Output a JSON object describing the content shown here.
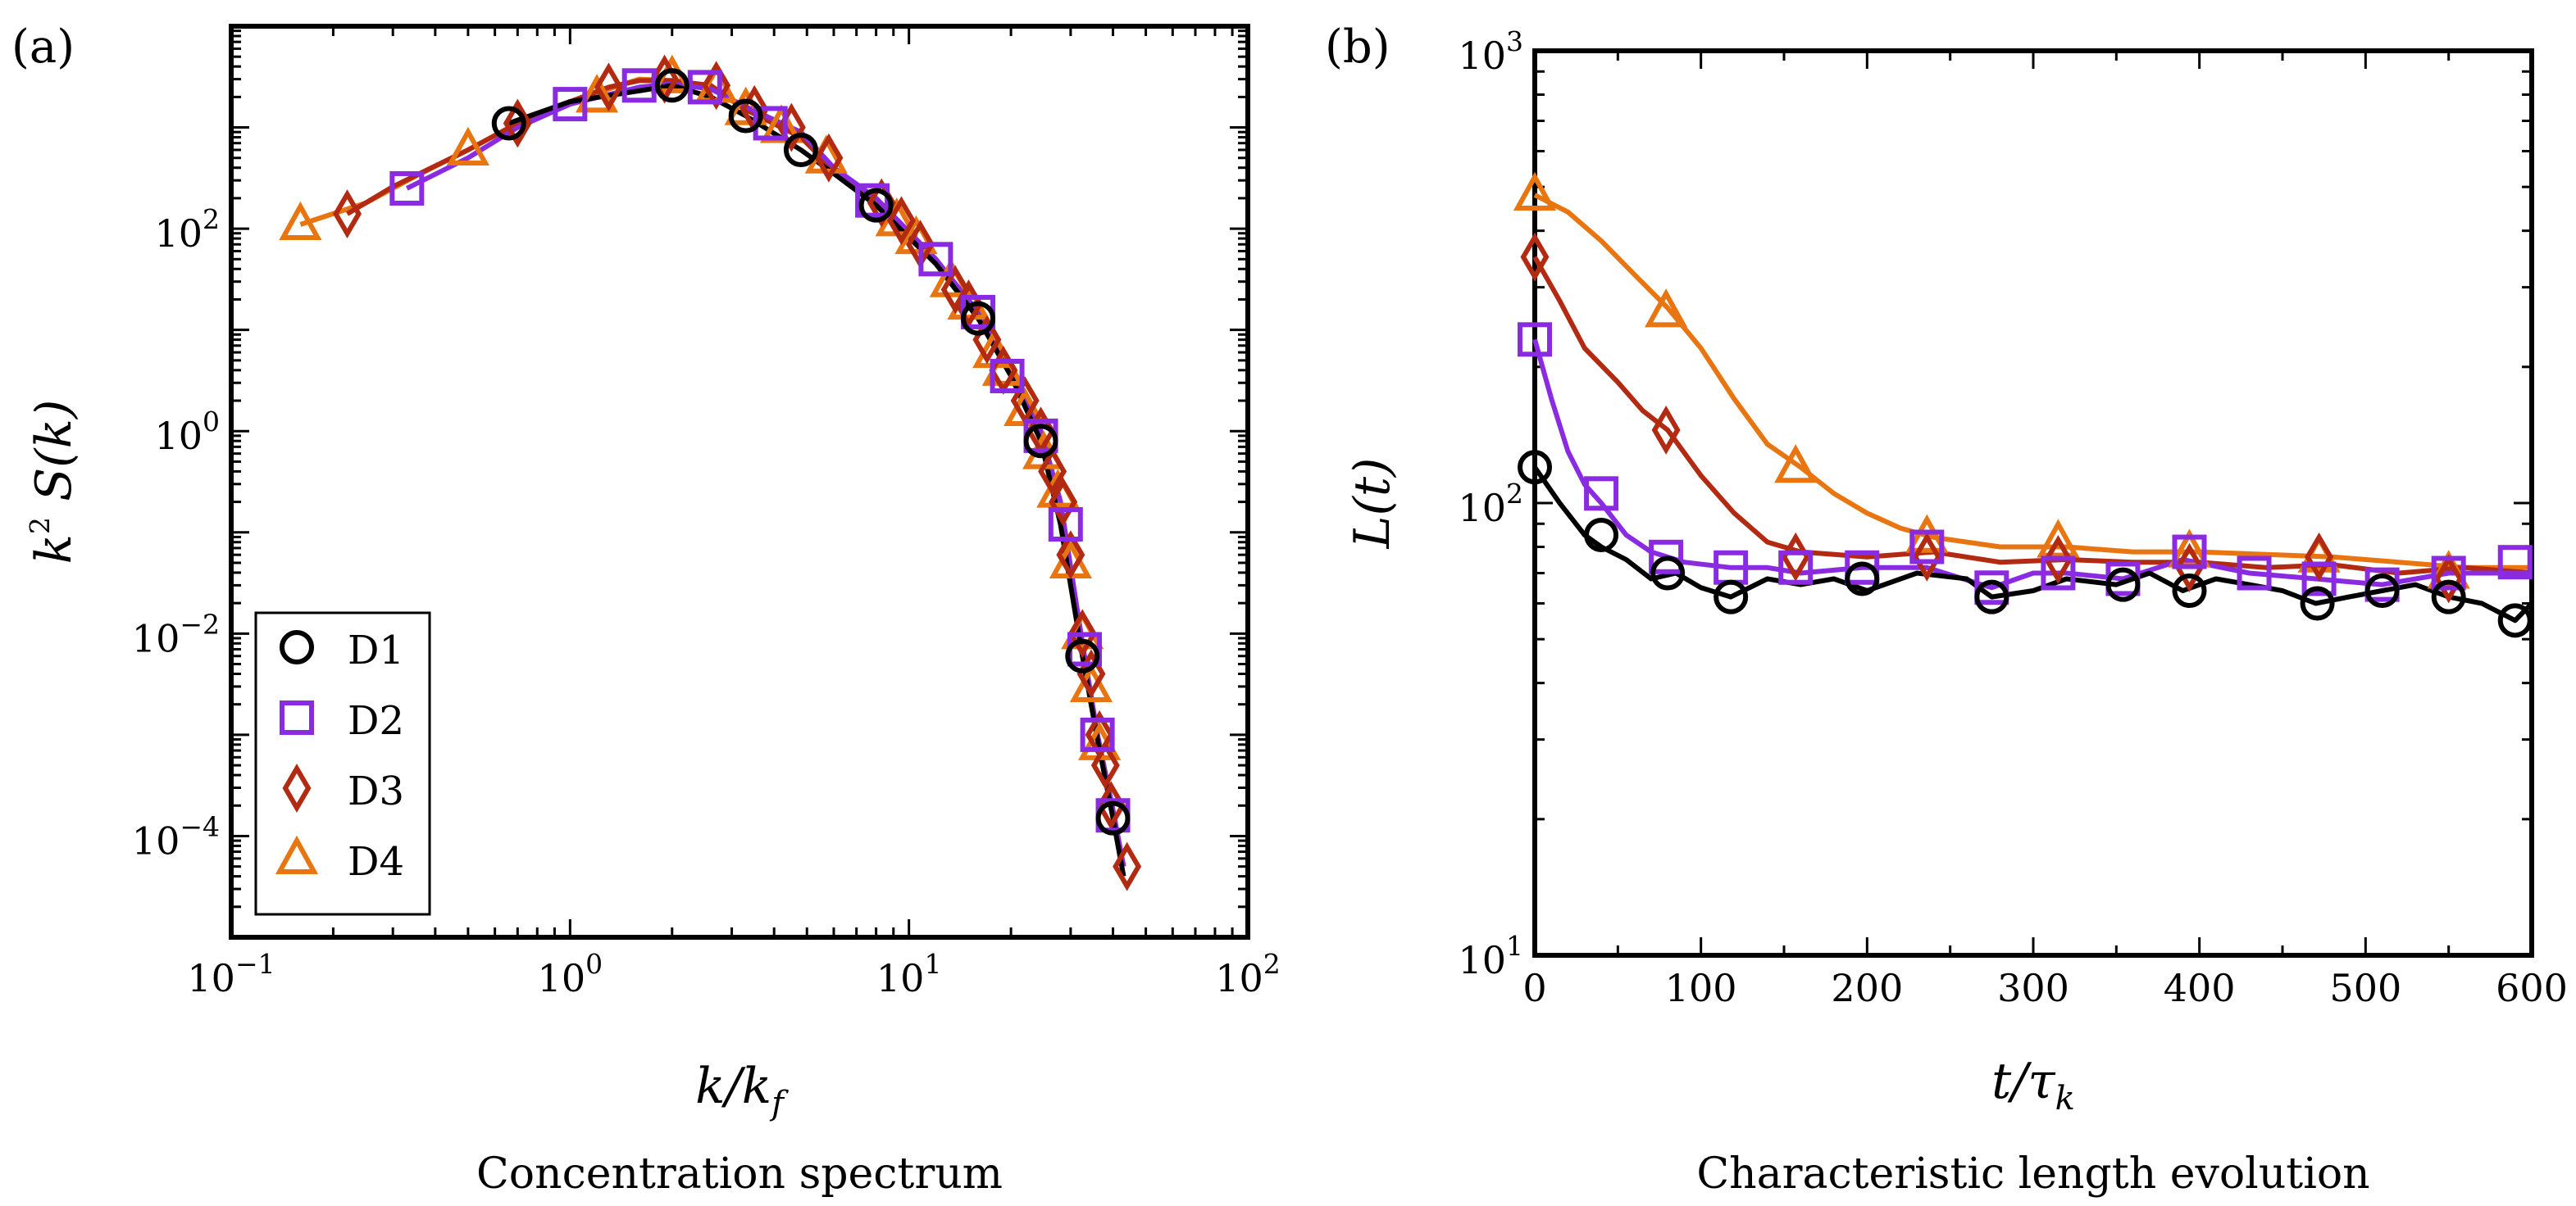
{
  "colors": {
    "D1": "#000000",
    "D2": "#8a2be2",
    "D3": "#b22a12",
    "D4": "#e8750f"
  },
  "markers": {
    "D1": "circle",
    "D2": "square",
    "D3": "diamond",
    "D4": "triangle"
  },
  "chart_data": [
    {
      "type": "line",
      "panel_label": "(a)",
      "caption": "Concentration spectrum",
      "title": "",
      "xlabel": "k/k_f",
      "ylabel": "k^2 S(k)",
      "xscale": "log",
      "yscale": "log",
      "xlim": [
        0.1,
        100
      ],
      "ylim": [
        1e-05,
        10000
      ],
      "x_ticks": [
        {
          "base": "10",
          "exp": "−1"
        },
        {
          "base": "10",
          "exp": "0"
        },
        {
          "base": "10",
          "exp": "1"
        },
        {
          "base": "10",
          "exp": "2"
        }
      ],
      "y_ticks": [
        {
          "base": "10",
          "exp": "−4"
        },
        {
          "base": "10",
          "exp": "−2"
        },
        {
          "base": "10",
          "exp": "0"
        },
        {
          "base": "10",
          "exp": "2"
        }
      ],
      "legend": [
        "D1",
        "D2",
        "D3",
        "D4"
      ],
      "legend_position": "lower-left",
      "series": [
        {
          "name": "D1",
          "x": [
            0.66,
            1.0,
            1.6,
            2.0,
            2.6,
            3.3,
            4.8,
            6.0,
            8.0,
            12.0,
            16.0,
            20.0,
            24.5,
            28.0,
            32.5,
            36.0,
            40.0,
            43.0
          ],
          "y": [
            1100,
            1800,
            2300,
            2600,
            2000,
            1300,
            600,
            350,
            170,
            45,
            13,
            3.5,
            0.8,
            0.12,
            0.006,
            0.0009,
            0.00015,
            4e-05
          ],
          "mx": [
            0.66,
            2.0,
            3.3,
            4.8,
            8.0,
            16.0,
            24.5,
            32.5,
            40.0
          ],
          "my": [
            1100,
            2600,
            1300,
            600,
            170,
            13,
            0.8,
            0.006,
            0.00015
          ]
        },
        {
          "name": "D2",
          "x": [
            0.33,
            0.5,
            0.7,
            1.0,
            1.6,
            2.0,
            2.6,
            3.3,
            4.8,
            6.0,
            8.0,
            12.0,
            16.0,
            20.0,
            24.5,
            28.0,
            32.5,
            36.0,
            40.0,
            43.0
          ],
          "y": [
            250,
            500,
            1000,
            1700,
            2500,
            2700,
            2400,
            1600,
            900,
            400,
            200,
            50,
            15,
            4,
            1,
            0.2,
            0.008,
            0.001,
            0.00018,
            5e-05
          ],
          "mx": [
            0.33,
            1.0,
            1.6,
            2.5,
            3.9,
            7.8,
            12.0,
            16.0,
            19.5,
            24.5,
            29.0,
            33.0,
            36.0,
            40.0
          ],
          "my": [
            250,
            1700,
            2600,
            2500,
            1100,
            190,
            50,
            15,
            3.5,
            0.9,
            0.12,
            0.007,
            0.001,
            0.00016
          ]
        },
        {
          "name": "D3",
          "x": [
            0.22,
            0.3,
            0.5,
            0.7,
            1.0,
            1.3,
            1.6,
            2.0,
            2.6,
            3.3,
            4.8,
            6.0,
            8.0,
            12.0,
            16.0,
            20.0,
            24.5,
            28.0,
            32.5,
            36.0,
            40.0,
            43.0
          ],
          "y": [
            140,
            260,
            600,
            1100,
            1800,
            2500,
            2900,
            2900,
            2600,
            1500,
            800,
            380,
            190,
            50,
            14,
            4,
            1,
            0.2,
            0.008,
            0.001,
            0.00018,
            5e-05
          ],
          "mx": [
            0.22,
            0.7,
            1.3,
            1.9,
            2.7,
            3.5,
            4.5,
            5.8,
            8.3,
            9.5,
            10.8,
            13.7,
            15.0,
            17.0,
            19.0,
            22.0,
            24.5,
            26.5,
            28.5,
            30.0,
            32.5,
            34.5,
            36.5,
            38.0,
            39.5,
            44.0
          ],
          "my": [
            140,
            1100,
            2500,
            3000,
            2600,
            1500,
            1000,
            500,
            180,
            120,
            70,
            25,
            18,
            8,
            4,
            2,
            1,
            0.4,
            0.2,
            0.06,
            0.01,
            0.004,
            0.001,
            0.0005,
            0.0002,
            5e-05
          ]
        },
        {
          "name": "D4",
          "x": [
            0.16,
            0.25,
            0.35,
            0.5,
            0.7,
            1.0,
            1.3,
            1.6,
            2.0,
            2.6,
            3.3,
            4.8,
            6.0,
            8.0,
            12.0,
            16.0,
            20.0,
            24.5,
            28.0,
            32.5,
            36.0,
            40.0
          ],
          "y": [
            110,
            180,
            330,
            600,
            1100,
            1700,
            2400,
            3000,
            2900,
            2500,
            1500,
            800,
            380,
            190,
            50,
            14,
            4,
            1,
            0.2,
            0.008,
            0.001,
            0.00018
          ],
          "mx": [
            0.16,
            0.5,
            1.2,
            2.0,
            2.7,
            3.3,
            4.2,
            5.7,
            9.2,
            10.5,
            13.3,
            15.0,
            17.8,
            19.0,
            22.0,
            25.0,
            27.5,
            30.0,
            32.5,
            34.5,
            36.5
          ],
          "my": [
            110,
            600,
            2000,
            3100,
            2500,
            1500,
            1000,
            500,
            120,
            80,
            30,
            18,
            6,
            4,
            1.6,
            0.6,
            0.25,
            0.05,
            0.01,
            0.003,
            0.0008
          ]
        }
      ]
    },
    {
      "type": "line",
      "panel_label": "(b)",
      "caption": "Characteristic length evolution",
      "title": "",
      "xlabel": "t/τ_k",
      "ylabel": "L(t)",
      "xscale": "linear",
      "yscale": "log",
      "xlim": [
        0,
        600
      ],
      "ylim": [
        10,
        1000
      ],
      "x_ticks": [
        "0",
        "100",
        "200",
        "300",
        "400",
        "500",
        "600"
      ],
      "y_ticks": [
        {
          "base": "10",
          "exp": "1"
        },
        {
          "base": "10",
          "exp": "2"
        },
        {
          "base": "10",
          "exp": "3"
        }
      ],
      "series": [
        {
          "name": "D1",
          "x": [
            0,
            15,
            30,
            40,
            55,
            70,
            85,
            100,
            118,
            140,
            160,
            180,
            200,
            230,
            260,
            275,
            300,
            320,
            350,
            370,
            390,
            410,
            430,
            450,
            470,
            490,
            510,
            530,
            550,
            570,
            590,
            600
          ],
          "y": [
            120,
            100,
            85,
            80,
            75,
            68,
            70,
            65,
            62,
            68,
            66,
            68,
            64,
            70,
            68,
            62,
            64,
            68,
            66,
            70,
            64,
            68,
            66,
            64,
            60,
            62,
            64,
            66,
            62,
            60,
            55,
            60
          ],
          "mx": [
            0,
            40,
            80,
            118,
            197,
            275,
            354,
            394,
            471,
            510,
            550,
            590
          ],
          "my": [
            120,
            85,
            70,
            62,
            68,
            62,
            66,
            64,
            60,
            64,
            62,
            55
          ]
        },
        {
          "name": "D2",
          "x": [
            0,
            10,
            20,
            30,
            40,
            55,
            70,
            90,
            118,
            140,
            160,
            197,
            236,
            275,
            300,
            320,
            354,
            375,
            390,
            430,
            470,
            510,
            550,
            580,
            600
          ],
          "y": [
            230,
            170,
            130,
            110,
            100,
            85,
            78,
            74,
            72,
            72,
            70,
            72,
            72,
            65,
            70,
            70,
            68,
            72,
            75,
            70,
            68,
            66,
            70,
            70,
            70
          ],
          "mx": [
            0,
            40,
            79,
            118,
            157,
            197,
            236,
            275,
            315,
            354,
            394,
            433,
            472,
            510,
            550,
            590
          ],
          "my": [
            230,
            105,
            76,
            72,
            72,
            72,
            80,
            65,
            70,
            68,
            78,
            70,
            68,
            66,
            70,
            74
          ]
        },
        {
          "name": "D3",
          "x": [
            0,
            15,
            30,
            50,
            65,
            80,
            100,
            120,
            140,
            160,
            200,
            240,
            280,
            320,
            360,
            400,
            440,
            480,
            520,
            560,
            600
          ],
          "y": [
            350,
            280,
            220,
            185,
            160,
            145,
            115,
            95,
            82,
            78,
            76,
            78,
            74,
            75,
            74,
            74,
            72,
            73,
            70,
            72,
            70
          ],
          "mx": [
            0,
            79,
            157,
            236,
            315,
            394,
            472,
            550
          ],
          "my": [
            350,
            145,
            76,
            76,
            75,
            72,
            76,
            68
          ]
        },
        {
          "name": "D4",
          "x": [
            0,
            20,
            40,
            60,
            80,
            100,
            120,
            140,
            160,
            180,
            200,
            220,
            240,
            280,
            320,
            360,
            400,
            440,
            480,
            520,
            560,
            600
          ],
          "y": [
            480,
            440,
            380,
            320,
            270,
            220,
            170,
            135,
            120,
            105,
            95,
            88,
            84,
            80,
            80,
            78,
            78,
            77,
            76,
            74,
            72,
            72
          ],
          "mx": [
            0,
            79,
            157,
            236,
            315,
            394,
            472,
            550
          ],
          "my": [
            480,
            265,
            120,
            84,
            82,
            78,
            76,
            70
          ]
        }
      ]
    }
  ]
}
